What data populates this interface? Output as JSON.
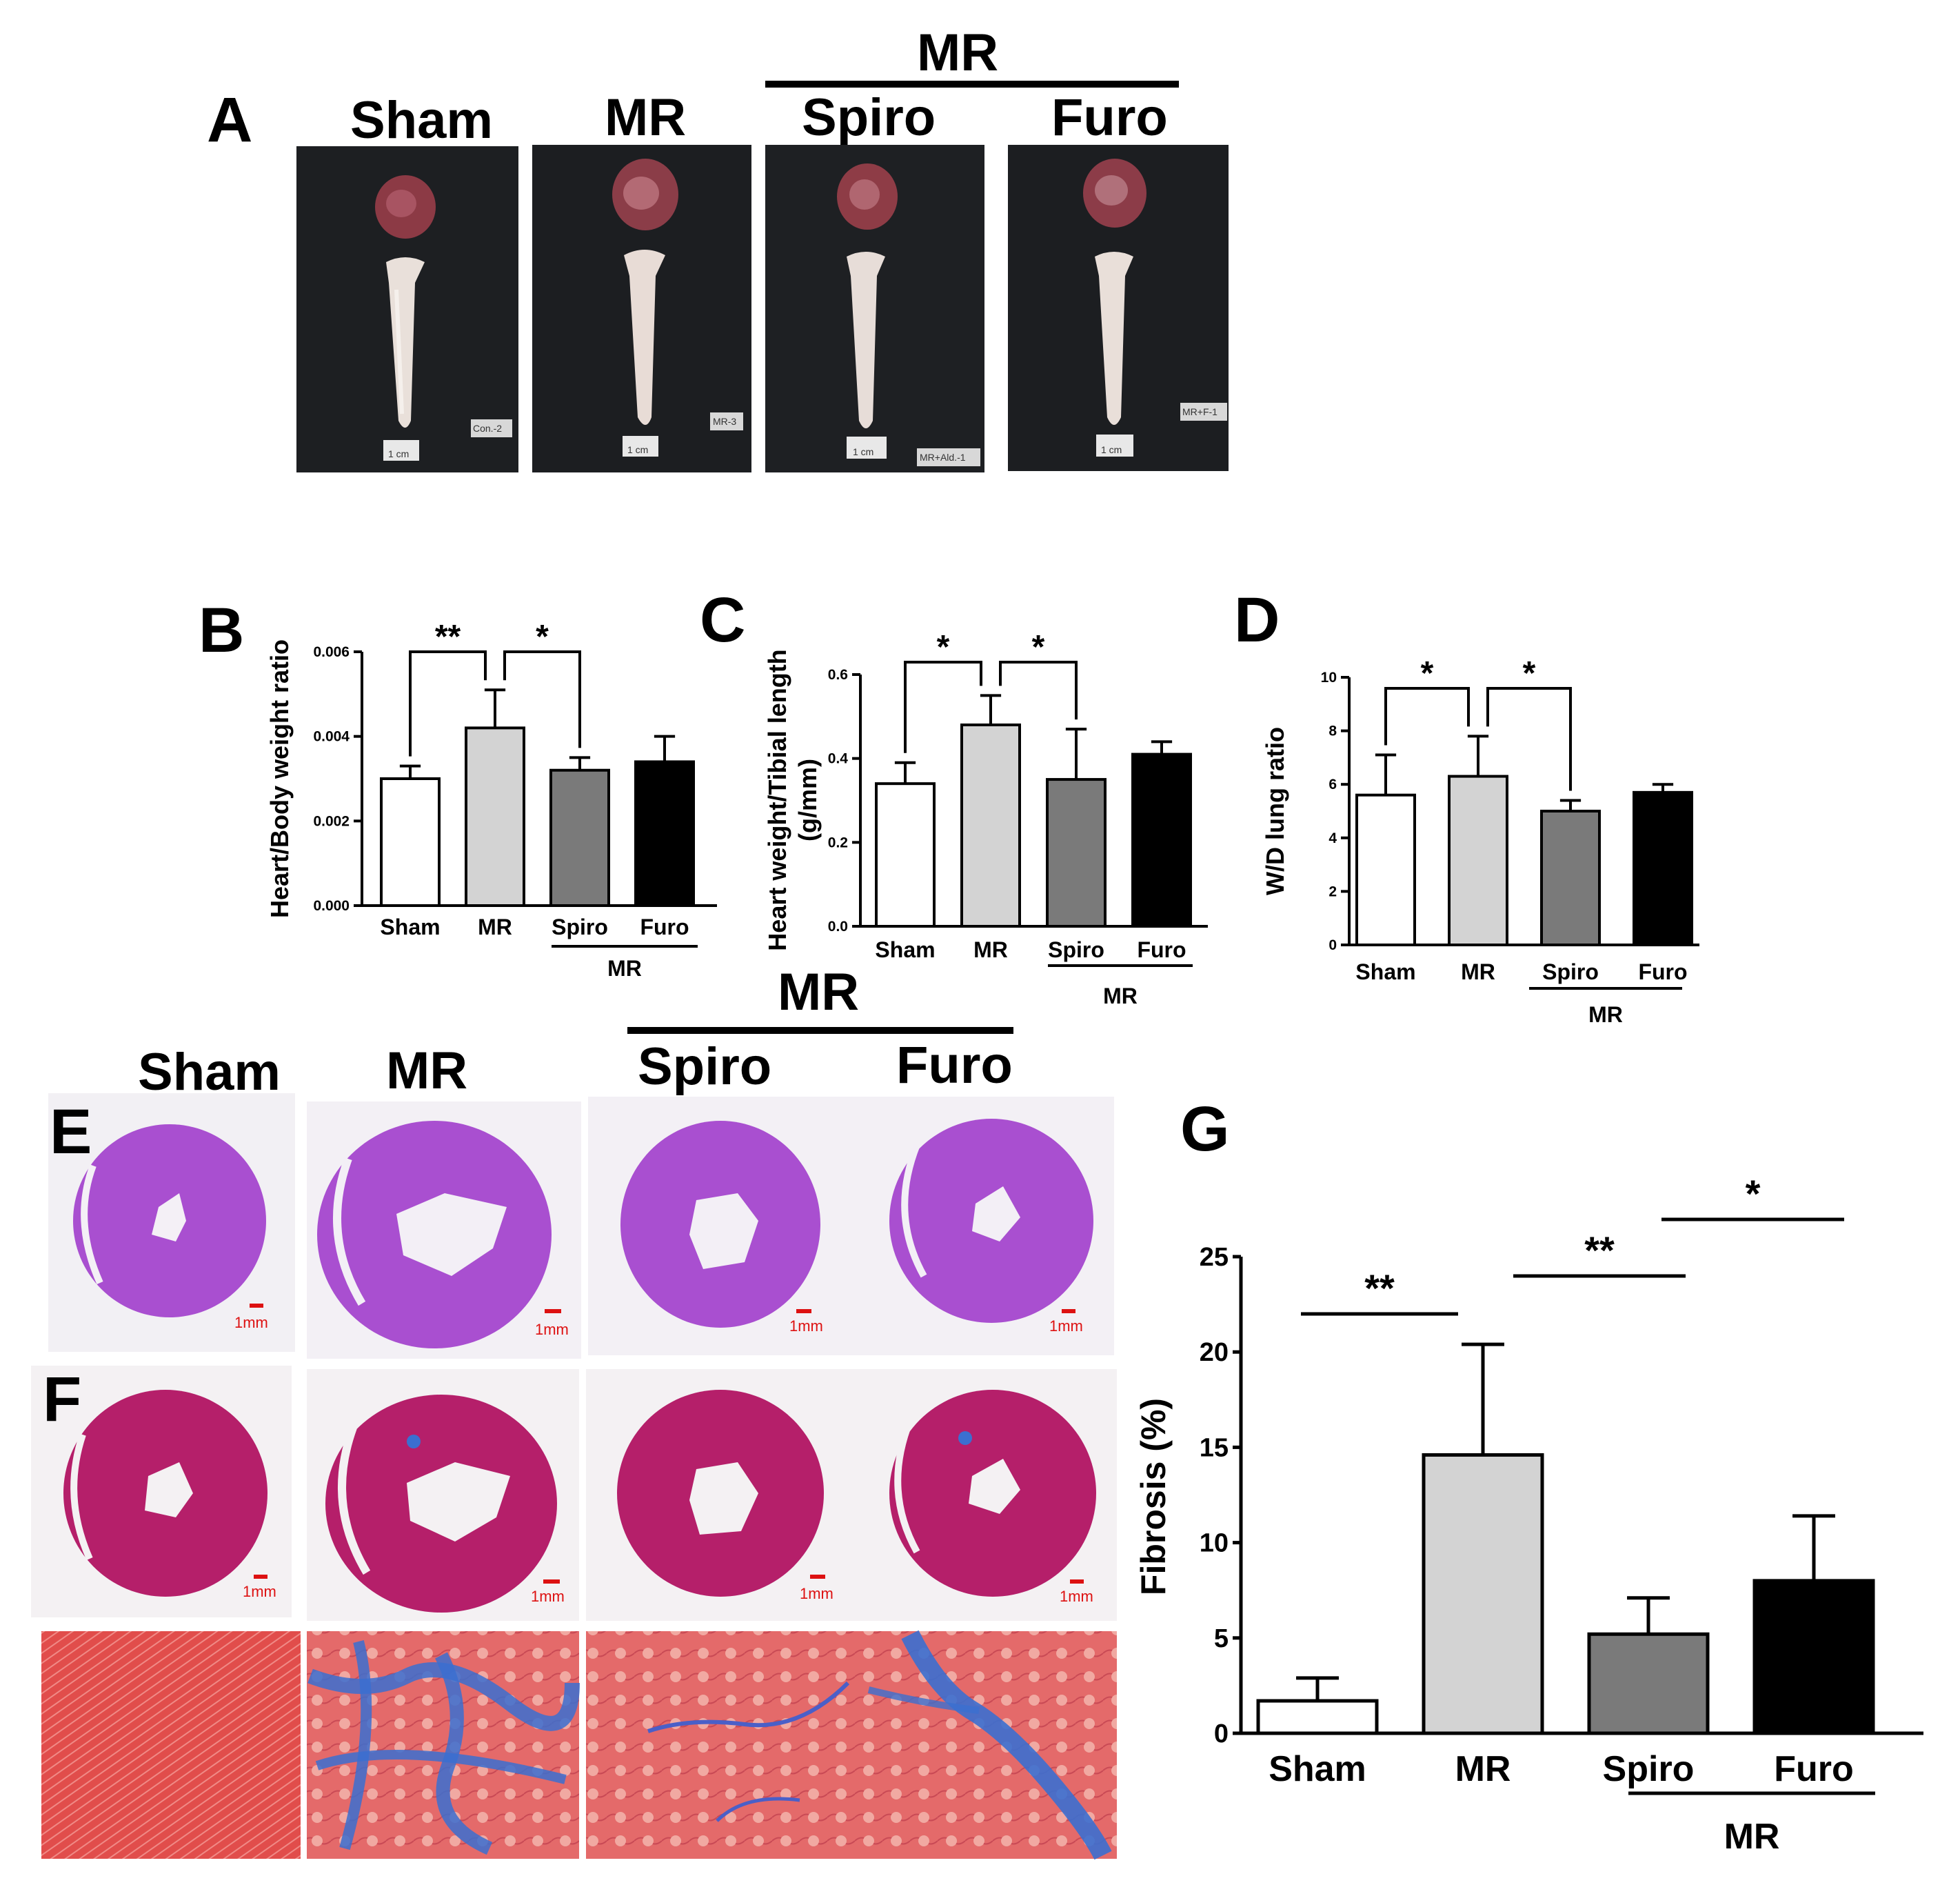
{
  "panels": {
    "A": "A",
    "B": "B",
    "C": "C",
    "D": "D",
    "E": "E",
    "F": "F",
    "G": "G"
  },
  "groups_A": {
    "sham": "Sham",
    "mr": "MR",
    "spiro": "Spiro",
    "furo": "Furo",
    "mr_header": "MR"
  },
  "photo_tags": [
    "Con.-2",
    "MR-3",
    "MR+Ald.-1",
    "MR+F-1"
  ],
  "scale_photo": "1 cm",
  "groups_E": {
    "sham": "Sham",
    "mr": "MR",
    "spiro": "Spiro",
    "furo": "Furo",
    "mr_header": "MR"
  },
  "scale_section": "1mm",
  "colors": {
    "sham": "#ffffff",
    "mr": "#d3d3d3",
    "spiro": "#7a7a7a",
    "furo": "#000000",
    "he_tissue": "#a94fd0",
    "masson_tissue": "#b51f6a",
    "collagen": "#3b6fd0",
    "muscle": "#e2524f"
  },
  "chart_data": [
    {
      "panel": "B",
      "type": "bar",
      "ylabel": "Heart/Body weight ratio",
      "categories": [
        "Sham",
        "MR",
        "Spiro",
        "Furo"
      ],
      "values": [
        0.003,
        0.0042,
        0.0032,
        0.0034
      ],
      "errors": [
        0.0003,
        0.0009,
        0.0003,
        0.0006
      ],
      "ylim": [
        0,
        0.006
      ],
      "yticks": [
        "0.000",
        "0.002",
        "0.004",
        "0.006"
      ],
      "group_label": "MR",
      "significance": [
        {
          "from": 0,
          "to": 1,
          "label": "**"
        },
        {
          "from": 1,
          "to": 2,
          "label": "*"
        }
      ]
    },
    {
      "panel": "C",
      "type": "bar",
      "ylabel": "Heart weight/Tibial length (g/mm)",
      "ylabel_lines": [
        "Heart weight/Tibial length",
        "(g/mm)"
      ],
      "categories": [
        "Sham",
        "MR",
        "Spiro",
        "Furo"
      ],
      "values": [
        0.34,
        0.48,
        0.35,
        0.41
      ],
      "errors": [
        0.05,
        0.07,
        0.12,
        0.03
      ],
      "ylim": [
        0,
        0.6
      ],
      "yticks": [
        "0.0",
        "0.2",
        "0.4",
        "0.6"
      ],
      "group_label": "MR",
      "significance": [
        {
          "from": 0,
          "to": 1,
          "label": "*"
        },
        {
          "from": 1,
          "to": 2,
          "label": "*"
        }
      ]
    },
    {
      "panel": "D",
      "type": "bar",
      "ylabel": "W/D lung ratio",
      "categories": [
        "Sham",
        "MR",
        "Spiro",
        "Furo"
      ],
      "values": [
        5.6,
        6.3,
        5.0,
        5.7
      ],
      "errors": [
        1.5,
        1.5,
        0.4,
        0.3
      ],
      "ylim": [
        0,
        10
      ],
      "yticks": [
        "0",
        "2",
        "4",
        "6",
        "8",
        "10"
      ],
      "group_label": "MR",
      "significance": [
        {
          "from": 0,
          "to": 1,
          "label": "*"
        },
        {
          "from": 1,
          "to": 2,
          "label": "*"
        }
      ]
    },
    {
      "panel": "G",
      "type": "bar",
      "ylabel": "Fibrosis (%)",
      "categories": [
        "Sham",
        "MR",
        "Spiro",
        "Furo"
      ],
      "values": [
        1.7,
        14.6,
        5.2,
        8.0
      ],
      "errors": [
        1.2,
        5.8,
        1.9,
        3.4
      ],
      "ylim": [
        0,
        25
      ],
      "yticks": [
        "0",
        "5",
        "10",
        "15",
        "20",
        "25"
      ],
      "group_label": "MR",
      "significance": [
        {
          "from": 0,
          "to": 1,
          "label": "**"
        },
        {
          "from": 1,
          "to": 2,
          "label": "**"
        },
        {
          "from": 2,
          "to": 3,
          "label": "*"
        }
      ]
    }
  ]
}
